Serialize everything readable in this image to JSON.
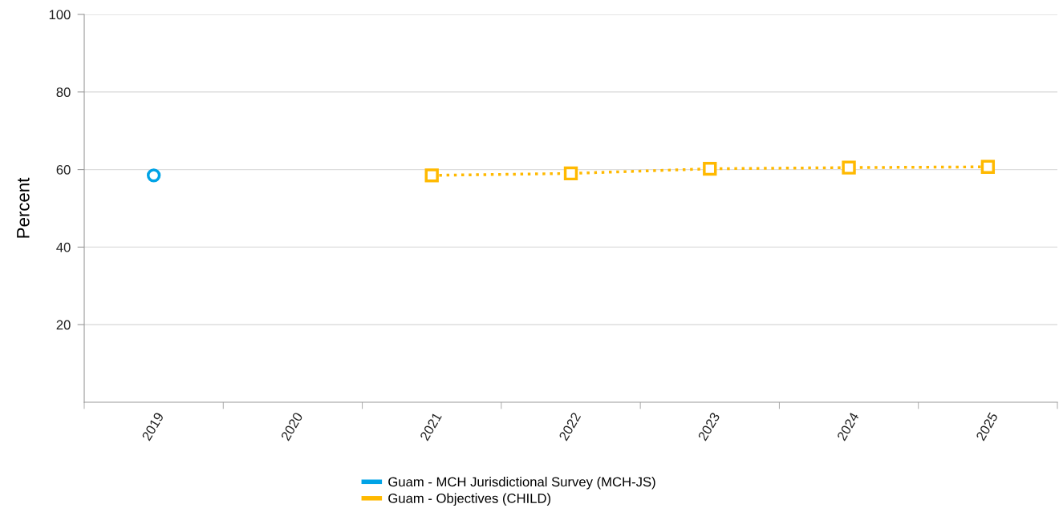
{
  "chart_data": {
    "type": "line",
    "ylabel": "Percent",
    "categories": [
      "2019",
      "2020",
      "2021",
      "2022",
      "2023",
      "2024",
      "2025"
    ],
    "series": [
      {
        "name": "Guam - MCH Jurisdictional Survey (MCH-JS)",
        "color": "#00a3e6",
        "marker": "circle",
        "line_style": "none",
        "values": [
          58.5,
          null,
          null,
          null,
          null,
          null,
          null
        ]
      },
      {
        "name": "Guam - Objectives (CHILD)",
        "color": "#ffb900",
        "marker": "square",
        "line_style": "dotted",
        "values": [
          null,
          null,
          58.5,
          59.0,
          60.2,
          60.5,
          60.7
        ]
      }
    ],
    "ylim": [
      0,
      100
    ],
    "yticks": [
      20,
      40,
      60,
      80,
      100
    ],
    "grid": "y",
    "legend": "bottom"
  }
}
